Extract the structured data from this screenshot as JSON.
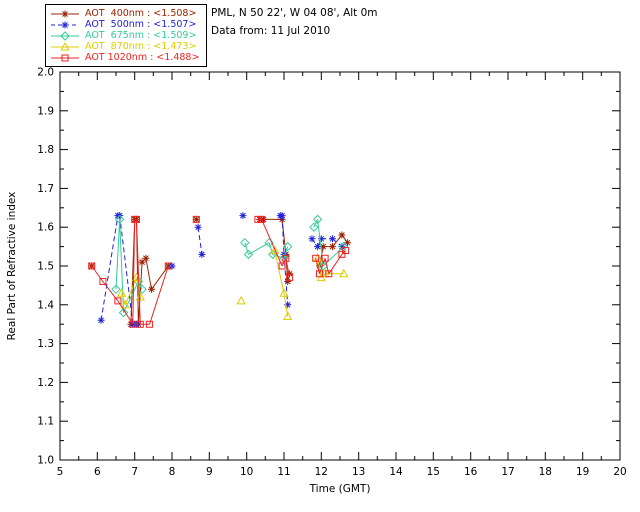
{
  "header": {
    "line1": "PML, N 50 22', W 04 08', Alt 0m",
    "line2": "Data from: 11 Jul 2010"
  },
  "chart_data": {
    "type": "scatter",
    "xlabel": "Time (GMT)",
    "ylabel": "Real Part of Refractive index",
    "xlim": [
      5,
      20
    ],
    "ylim": [
      1.0,
      2.0
    ],
    "xticks": [
      5,
      6,
      7,
      8,
      9,
      10,
      11,
      12,
      13,
      14,
      15,
      16,
      17,
      18,
      19,
      20
    ],
    "yticks": [
      1.0,
      1.1,
      1.2,
      1.3,
      1.4,
      1.5,
      1.6,
      1.7,
      1.8,
      1.9,
      2.0
    ],
    "grid": false,
    "legend_position": "top-left-outside",
    "gap_threshold": 0.65,
    "frame_color": "#000000",
    "series": [
      {
        "id": "400nm",
        "label": "AOT  400nm : <1.508>",
        "mean": "1.508",
        "color": "#992200",
        "symbol": "asterisk",
        "linestyle": "solid",
        "points": [
          [
            5.85,
            1.5
          ],
          [
            6.9,
            1.35
          ],
          [
            7.0,
            1.62
          ],
          [
            7.05,
            1.62
          ],
          [
            7.1,
            1.35
          ],
          [
            7.2,
            1.51
          ],
          [
            7.3,
            1.52
          ],
          [
            7.45,
            1.44
          ],
          [
            7.9,
            1.5
          ],
          [
            8.65,
            1.62
          ],
          [
            10.35,
            1.62
          ],
          [
            10.45,
            1.62
          ],
          [
            10.95,
            1.62
          ],
          [
            11.05,
            1.53
          ],
          [
            11.1,
            1.46
          ],
          [
            11.15,
            1.48
          ],
          [
            11.95,
            1.5
          ],
          [
            12.05,
            1.55
          ],
          [
            12.3,
            1.55
          ],
          [
            12.55,
            1.58
          ],
          [
            12.7,
            1.56
          ]
        ]
      },
      {
        "id": "500nm",
        "label": "AOT  500nm : <1.507>",
        "mean": "1.507",
        "color": "#2222dd",
        "symbol": "asterisk",
        "linestyle": "dashed",
        "points": [
          [
            6.1,
            1.36
          ],
          [
            6.55,
            1.63
          ],
          [
            6.6,
            1.63
          ],
          [
            6.95,
            1.35
          ],
          [
            7.05,
            1.35
          ],
          [
            8.0,
            1.5
          ],
          [
            8.7,
            1.6
          ],
          [
            8.8,
            1.53
          ],
          [
            9.9,
            1.63
          ],
          [
            10.9,
            1.63
          ],
          [
            10.95,
            1.63
          ],
          [
            11.0,
            1.53
          ],
          [
            11.1,
            1.4
          ],
          [
            11.75,
            1.57
          ],
          [
            11.9,
            1.55
          ],
          [
            12.0,
            1.57
          ],
          [
            12.3,
            1.57
          ],
          [
            12.55,
            1.55
          ]
        ]
      },
      {
        "id": "675nm",
        "label": "AOT  675nm : <1.509>",
        "mean": "1.509",
        "color": "#33cc99",
        "symbol": "diamond",
        "linestyle": "solid",
        "points": [
          [
            6.5,
            1.44
          ],
          [
            6.6,
            1.62
          ],
          [
            6.7,
            1.38
          ],
          [
            7.1,
            1.46
          ],
          [
            7.2,
            1.44
          ],
          [
            9.95,
            1.56
          ],
          [
            10.05,
            1.53
          ],
          [
            10.6,
            1.56
          ],
          [
            10.7,
            1.53
          ],
          [
            11.0,
            1.52
          ],
          [
            11.1,
            1.55
          ],
          [
            11.8,
            1.6
          ],
          [
            11.9,
            1.62
          ],
          [
            12.05,
            1.5
          ],
          [
            12.6,
            1.55
          ]
        ]
      },
      {
        "id": "870nm",
        "label": "AOT  870nm : <1.473>",
        "mean": "1.473",
        "color": "#ddcc00",
        "symbol": "triangle",
        "linestyle": "solid",
        "points": [
          [
            6.65,
            1.43
          ],
          [
            6.75,
            1.4
          ],
          [
            7.05,
            1.47
          ],
          [
            7.15,
            1.42
          ],
          [
            9.85,
            1.41
          ],
          [
            10.75,
            1.54
          ],
          [
            11.0,
            1.43
          ],
          [
            11.1,
            1.37
          ],
          [
            11.9,
            1.52
          ],
          [
            12.0,
            1.47
          ],
          [
            12.1,
            1.48
          ],
          [
            12.6,
            1.48
          ]
        ]
      },
      {
        "id": "1020nm",
        "label": "AOT 1020nm : <1.488>",
        "mean": "1.488",
        "color": "#ee2222",
        "symbol": "square",
        "linestyle": "solid",
        "points": [
          [
            5.85,
            1.5
          ],
          [
            6.15,
            1.46
          ],
          [
            6.55,
            1.41
          ],
          [
            6.95,
            1.35
          ],
          [
            7.0,
            1.62
          ],
          [
            7.05,
            1.62
          ],
          [
            7.15,
            1.35
          ],
          [
            7.4,
            1.35
          ],
          [
            7.9,
            1.5
          ],
          [
            8.65,
            1.62
          ],
          [
            10.3,
            1.62
          ],
          [
            10.4,
            1.62
          ],
          [
            10.95,
            1.5
          ],
          [
            11.05,
            1.52
          ],
          [
            11.15,
            1.47
          ],
          [
            11.85,
            1.52
          ],
          [
            11.95,
            1.48
          ],
          [
            12.1,
            1.52
          ],
          [
            12.2,
            1.48
          ],
          [
            12.55,
            1.53
          ],
          [
            12.65,
            1.54
          ]
        ]
      }
    ]
  }
}
